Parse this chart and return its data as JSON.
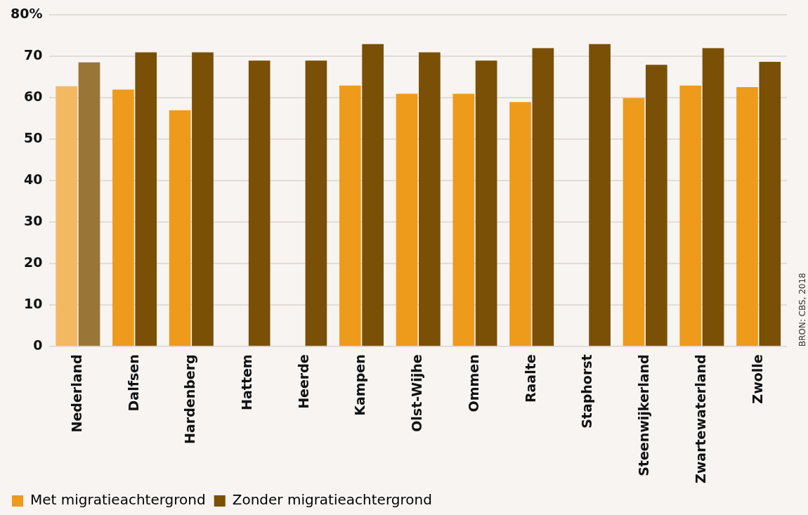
{
  "chart_data": {
    "type": "bar",
    "categories": [
      "Nederland",
      "Dalfsen",
      "Hardenberg",
      "Hattem",
      "Heerde",
      "Kampen",
      "Olst-Wijhe",
      "Ommen",
      "Raalte",
      "Staphorst",
      "Steenwijkerland",
      "Zwartewaterland",
      "Zwolle"
    ],
    "series": [
      {
        "name": "Met migratieachtergrond",
        "color": "#ee9a1b",
        "colors": [
          "#f3b862",
          "#ee9a1b",
          "#ee9a1b",
          "#ee9a1b",
          "#ee9a1b",
          "#ee9a1b",
          "#ee9a1b",
          "#ee9a1b",
          "#ee9a1b",
          "#ee9a1b",
          "#ee9a1b",
          "#ee9a1b",
          "#ee9a1b"
        ],
        "values": [
          62.8,
          62,
          57,
          0,
          0,
          63,
          61,
          61,
          59,
          0,
          60,
          63,
          62.6
        ]
      },
      {
        "name": "Zonder migratieachtergrond",
        "color": "#7a4f06",
        "colors": [
          "#9a7538",
          "#7a4f06",
          "#7a4f06",
          "#7a4f06",
          "#7a4f06",
          "#7a4f06",
          "#7a4f06",
          "#7a4f06",
          "#7a4f06",
          "#7a4f06",
          "#7a4f06",
          "#7a4f06",
          "#7a4f06"
        ],
        "values": [
          68.6,
          71,
          71,
          69,
          69,
          73,
          71,
          69,
          72,
          73,
          68,
          72,
          68.7
        ]
      }
    ],
    "ylim": [
      0,
      80
    ],
    "yticks": [
      0,
      10,
      20,
      30,
      40,
      50,
      60,
      70,
      {
        "value": 80,
        "label": "80%"
      }
    ],
    "grid": "y",
    "legend": "bottom left",
    "annotations": [
      "BRON: CBS, 2018"
    ]
  }
}
